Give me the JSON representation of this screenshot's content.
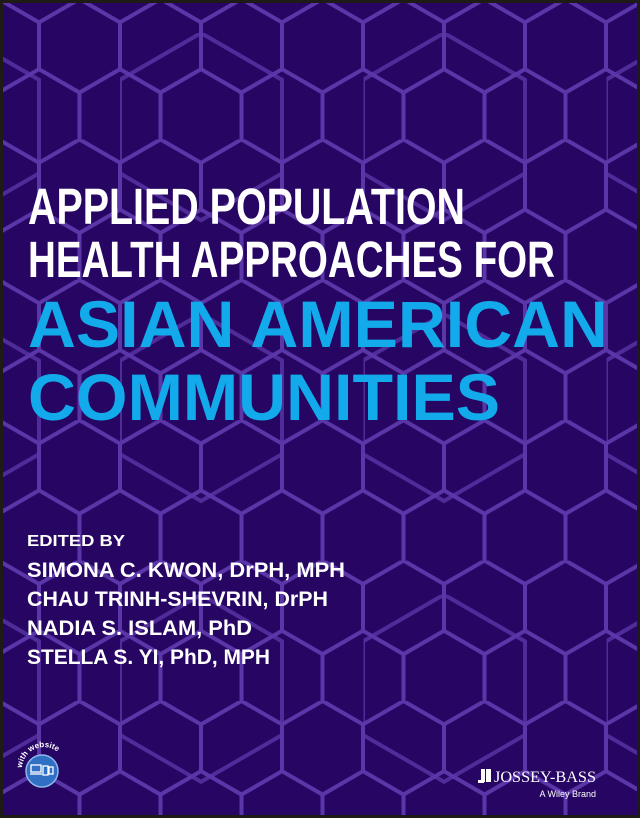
{
  "cover": {
    "title_lines": [
      "APPLIED POPULATION",
      "HEALTH APPROACHES FOR"
    ],
    "subtitle_lines": [
      "ASIAN AMERICAN",
      "COMMUNITIES"
    ],
    "edited_by_label": "EDITED BY",
    "editors": [
      "SIMONA C. KWON, DrPH, MPH",
      "CHAU TRINH-SHEVRIN, DrPH",
      "NADIA S. ISLAM, PhD",
      "STELLA S. YI, PhD, MPH"
    ],
    "badge_text": "with website",
    "badge_icon": "devices-icon",
    "publisher": "JOSSEY-BASS",
    "publisher_tagline": "A Wiley Brand",
    "colors": {
      "background": "#260563",
      "pattern": "#5b36a8",
      "title": "#ffffff",
      "subtitle": "#12aaea"
    }
  }
}
